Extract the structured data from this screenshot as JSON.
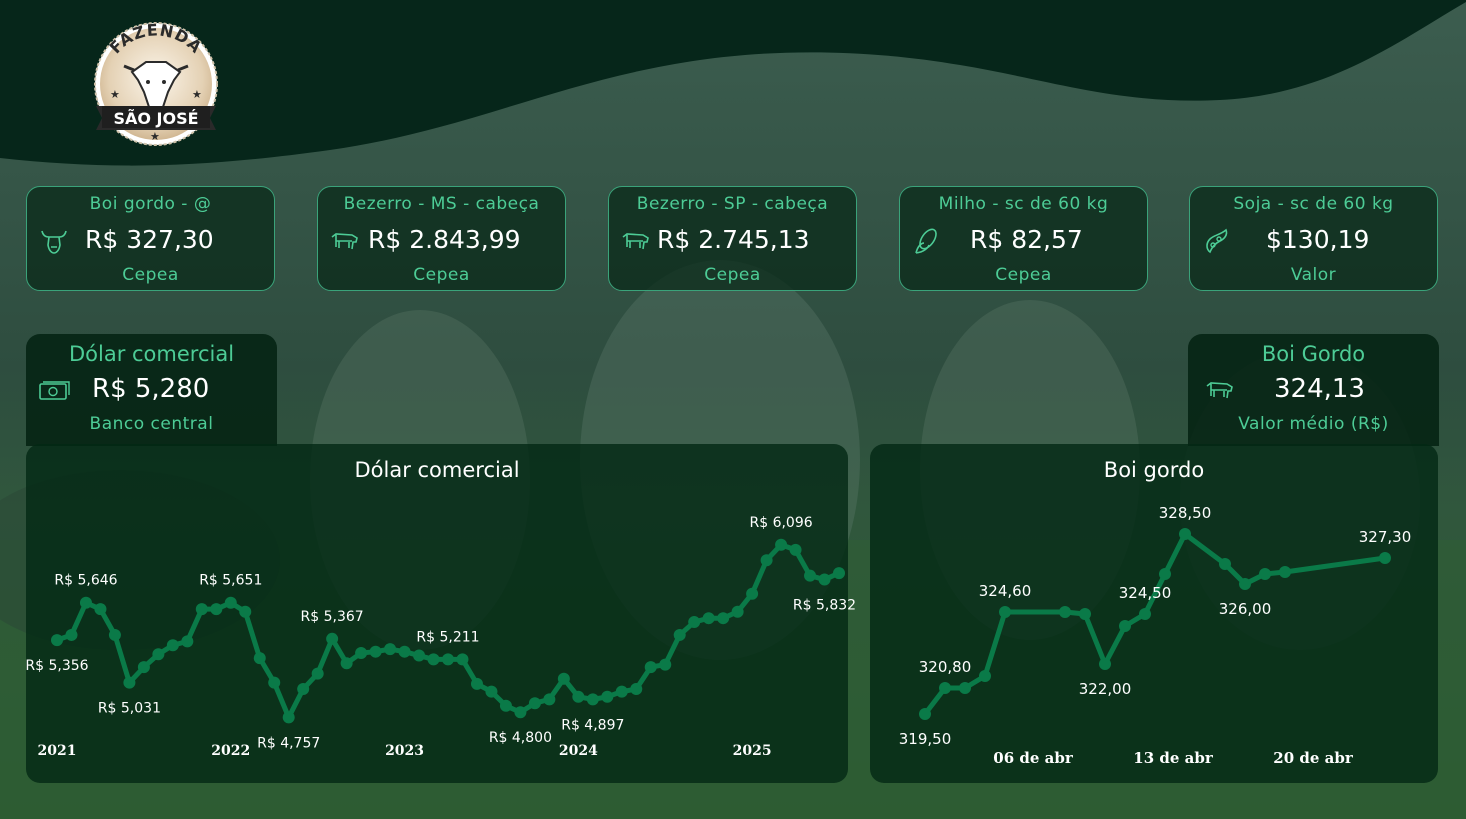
{
  "logo": {
    "top_text": "FAZENDA",
    "bottom_text": "SÃO JOSÉ"
  },
  "cards": [
    {
      "title": "Boi gordo - @",
      "value": "R$ 327,30",
      "source": "Cepea",
      "icon": "bull-head-icon"
    },
    {
      "title": "Bezerro - MS - cabeça",
      "value": "R$ 2.843,99",
      "source": "Cepea",
      "icon": "cow-icon"
    },
    {
      "title": "Bezerro - SP - cabeça",
      "value": "R$ 2.745,13",
      "source": "Cepea",
      "icon": "cow-icon"
    },
    {
      "title": "Milho - sc de 60 kg",
      "value": "R$ 82,57",
      "source": "Cepea",
      "icon": "corn-icon"
    },
    {
      "title": "Soja - sc de 60 kg",
      "value": "$130,19",
      "source": "Valor",
      "icon": "soybean-icon"
    }
  ],
  "kpis": [
    {
      "title": "Dólar comercial",
      "value": "R$ 5,280",
      "source": "Banco central",
      "icon": "banknote-icon"
    },
    {
      "title": "Boi Gordo",
      "value": "324,13",
      "source": "Valor médio (R$)",
      "icon": "cow-icon"
    }
  ],
  "chart_data": [
    {
      "type": "line",
      "title": "Dólar comercial",
      "x_ticks": [
        "2021",
        "2022",
        "2023",
        "2024",
        "2025"
      ],
      "values": [
        5.36,
        5.4,
        5.65,
        5.6,
        5.4,
        5.03,
        5.15,
        5.25,
        5.32,
        5.35,
        5.6,
        5.6,
        5.65,
        5.58,
        5.22,
        5.03,
        4.76,
        4.98,
        5.1,
        5.37,
        5.18,
        5.26,
        5.27,
        5.29,
        5.27,
        5.24,
        5.21,
        5.21,
        5.21,
        5.02,
        4.96,
        4.85,
        4.8,
        4.87,
        4.9,
        5.06,
        4.92,
        4.9,
        4.92,
        4.96,
        4.98,
        5.15,
        5.17,
        5.4,
        5.5,
        5.53,
        5.53,
        5.58,
        5.72,
        5.98,
        6.1,
        6.06,
        5.86,
        5.83,
        5.88
      ],
      "data_labels": [
        {
          "index": 0,
          "text": "R$ 5,356"
        },
        {
          "index": 2,
          "text": "R$ 5,646"
        },
        {
          "index": 5,
          "text": "R$ 5,031"
        },
        {
          "index": 12,
          "text": "R$ 5,651"
        },
        {
          "index": 16,
          "text": "R$ 4,757"
        },
        {
          "index": 19,
          "text": "R$ 5,367"
        },
        {
          "index": 27,
          "text": "R$ 5,211"
        },
        {
          "index": 32,
          "text": "R$ 4,800"
        },
        {
          "index": 37,
          "text": "R$ 4,897"
        },
        {
          "index": 50,
          "text": "R$ 6,096"
        },
        {
          "index": 53,
          "text": "R$ 5,832"
        }
      ],
      "ylim": [
        4.6,
        6.3
      ],
      "color": "#0a7a48",
      "grid": false
    },
    {
      "type": "line",
      "title": "Boi gordo",
      "x_ticks": [
        "06 de abr",
        "13 de abr",
        "20 de abr"
      ],
      "x": [
        0,
        1,
        2,
        3,
        4,
        7,
        8,
        9,
        10,
        11,
        12,
        13,
        15,
        16,
        17,
        18,
        23
      ],
      "values": [
        319.5,
        320.8,
        320.8,
        321.4,
        324.6,
        324.6,
        324.5,
        322.0,
        323.9,
        324.5,
        326.5,
        328.5,
        327.0,
        326.0,
        326.5,
        326.6,
        327.3
      ],
      "data_labels": [
        {
          "index": 0,
          "text": "319,50"
        },
        {
          "index": 1,
          "text": "320,80"
        },
        {
          "index": 4,
          "text": "324,60"
        },
        {
          "index": 7,
          "text": "322,00"
        },
        {
          "index": 9,
          "text": "324,50"
        },
        {
          "index": 11,
          "text": "328,50"
        },
        {
          "index": 13,
          "text": "326,00"
        },
        {
          "index": 16,
          "text": "327,30"
        }
      ],
      "ylim": [
        318.0,
        330.0
      ],
      "color": "#0a7a48",
      "grid": false
    }
  ]
}
